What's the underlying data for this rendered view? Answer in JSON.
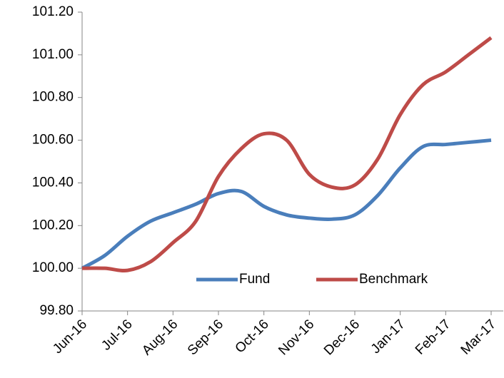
{
  "chart_data": {
    "type": "line",
    "categories": [
      "Jun-16",
      null,
      "Jul-16",
      null,
      "Aug-16",
      null,
      "Sep-16",
      null,
      "Oct-16",
      null,
      "Nov-16",
      null,
      "Dec-16",
      null,
      "Jan-17",
      null,
      "Feb-17",
      null,
      "Mar-17"
    ],
    "series": [
      {
        "name": "Fund",
        "color": "#4a7ebb",
        "values": [
          100.0,
          100.06,
          100.15,
          100.22,
          100.26,
          100.3,
          100.35,
          100.36,
          100.29,
          100.25,
          100.235,
          100.23,
          100.25,
          100.34,
          100.47,
          100.57,
          100.58,
          100.59,
          100.6
        ]
      },
      {
        "name": "Benchmark",
        "color": "#be4b48",
        "values": [
          100.0,
          100.0,
          99.99,
          100.03,
          100.12,
          100.22,
          100.43,
          100.56,
          100.63,
          100.6,
          100.44,
          100.38,
          100.39,
          100.51,
          100.72,
          100.86,
          100.92,
          101.0,
          101.08
        ]
      }
    ],
    "ylim": [
      99.8,
      101.2
    ],
    "yticks": [
      {
        "value": 99.8,
        "label": "99.80"
      },
      {
        "value": 100,
        "label": "100.00"
      },
      {
        "value": 100.2,
        "label": "100.20"
      },
      {
        "value": 100.4,
        "label": "100.40"
      },
      {
        "value": 100.6,
        "label": "100.60"
      },
      {
        "value": 100.8,
        "label": "100.80"
      },
      {
        "value": 101,
        "label": "101.00"
      },
      {
        "value": 101.2,
        "label": "101.20"
      }
    ],
    "grid": false,
    "legend": "bottom",
    "smooth": true
  }
}
